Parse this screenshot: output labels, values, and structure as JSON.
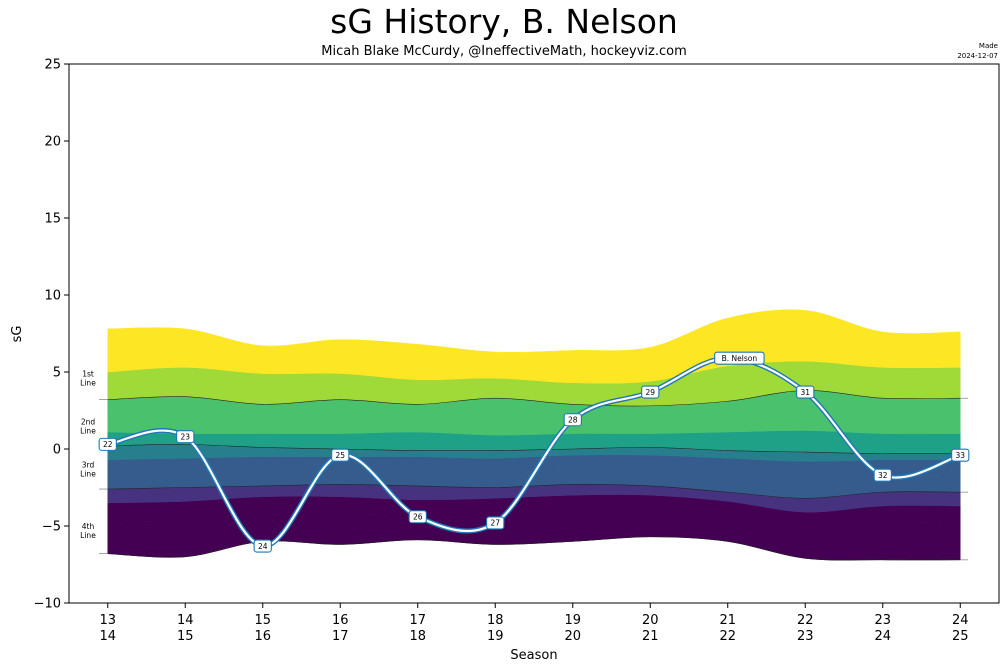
{
  "title": "sG History, B. Nelson",
  "subtitle": "Micah Blake McCurdy, @IneffectiveMath, hockeyviz.com",
  "made_label": "Made",
  "made_date": "2024-12-07",
  "colors": {
    "bands": [
      "#440154",
      "#46327e",
      "#365c8d",
      "#277f8e",
      "#1fa187",
      "#4ac16d",
      "#a0da39",
      "#fde725"
    ],
    "player_line": "#1f77b4",
    "line_label_border": "#1f77b4"
  },
  "chart_data": {
    "type": "area",
    "title": "sG History, B. Nelson",
    "xlabel": "Season",
    "ylabel": "sG",
    "ylim": [
      -10,
      25
    ],
    "yticks": [
      -10,
      -5,
      0,
      5,
      10,
      15,
      20,
      25
    ],
    "grid": false,
    "x": [
      0,
      1,
      2,
      3,
      4,
      5,
      6,
      7,
      8,
      9,
      10,
      11
    ],
    "x_tick_labels": [
      [
        "13",
        "14"
      ],
      [
        "14",
        "15"
      ],
      [
        "15",
        "16"
      ],
      [
        "16",
        "17"
      ],
      [
        "17",
        "18"
      ],
      [
        "18",
        "19"
      ],
      [
        "19",
        "20"
      ],
      [
        "20",
        "21"
      ],
      [
        "21",
        "22"
      ],
      [
        "22",
        "23"
      ],
      [
        "23",
        "24"
      ],
      [
        "24",
        "25"
      ]
    ],
    "band_boundaries": [
      [
        -6.8,
        -7.0,
        -6.0,
        -6.2,
        -5.9,
        -6.2,
        -6.0,
        -5.7,
        -6.0,
        -7.1,
        -7.2,
        -7.2
      ],
      [
        -4.8,
        -4.9,
        -4.3,
        -4.2,
        -4.4,
        -4.3,
        -4.0,
        -4.2,
        -4.8,
        -5.6,
        -4.8,
        -4.8
      ],
      [
        -3.5,
        -3.4,
        -3.1,
        -3.1,
        -3.3,
        -3.2,
        -3.0,
        -3.0,
        -3.4,
        -4.1,
        -3.7,
        -3.7
      ],
      [
        -2.6,
        -2.5,
        -2.4,
        -2.3,
        -2.4,
        -2.5,
        -2.3,
        -2.4,
        -2.8,
        -3.2,
        -2.8,
        -2.8
      ],
      [
        -1.6,
        -1.6,
        -1.4,
        -1.5,
        -1.5,
        -1.6,
        -1.4,
        -1.5,
        -1.8,
        -2.1,
        -1.8,
        -1.8
      ],
      [
        -0.7,
        -0.6,
        -0.5,
        -0.5,
        -0.5,
        -0.6,
        -0.4,
        -0.4,
        -0.6,
        -0.8,
        -0.7,
        -0.7
      ],
      [
        0.2,
        0.3,
        0.1,
        0.0,
        -0.1,
        -0.1,
        0.0,
        0.1,
        -0.1,
        -0.2,
        -0.3,
        -0.3
      ],
      [
        1.1,
        1.0,
        1.0,
        1.0,
        1.1,
        0.9,
        1.0,
        1.0,
        1.1,
        1.2,
        1.0,
        1.0
      ],
      [
        2.4,
        1.9,
        1.9,
        2.0,
        2.1,
        1.9,
        1.9,
        1.8,
        1.7,
        2.3,
        2.1,
        2.1
      ],
      [
        3.2,
        3.4,
        2.9,
        3.2,
        2.9,
        3.3,
        2.9,
        2.8,
        3.1,
        3.8,
        3.3,
        3.3
      ],
      [
        5.0,
        5.3,
        4.9,
        4.9,
        4.5,
        4.6,
        4.3,
        4.4,
        5.4,
        5.7,
        5.3,
        5.3
      ],
      [
        7.8,
        7.8,
        6.7,
        7.1,
        6.8,
        6.3,
        6.4,
        6.6,
        8.5,
        9.0,
        7.6,
        7.6
      ]
    ],
    "line_dividers_at_boundary_index": [
      0,
      3,
      6,
      9
    ],
    "line_labels": [
      {
        "line1": "1st",
        "line2": "Line",
        "y": 4.7
      },
      {
        "line1": "2nd",
        "line2": "Line",
        "y": 1.6
      },
      {
        "line1": "3rd",
        "line2": "Line",
        "y": -1.2
      },
      {
        "line1": "4th",
        "line2": "Line",
        "y": -5.2
      }
    ],
    "series": [
      {
        "name": "B. Nelson",
        "y": [
          0.3,
          0.8,
          -6.3,
          -0.4,
          -4.4,
          -4.8,
          1.9,
          3.7,
          5.9,
          3.7,
          -1.7,
          -0.4
        ],
        "point_labels": [
          "22",
          "23",
          "24",
          "25",
          "26",
          "27",
          "28",
          "29",
          "",
          "31",
          "32",
          "33"
        ]
      }
    ],
    "name_label": {
      "text": "B. Nelson",
      "x": 8.15,
      "y": 5.9
    }
  }
}
